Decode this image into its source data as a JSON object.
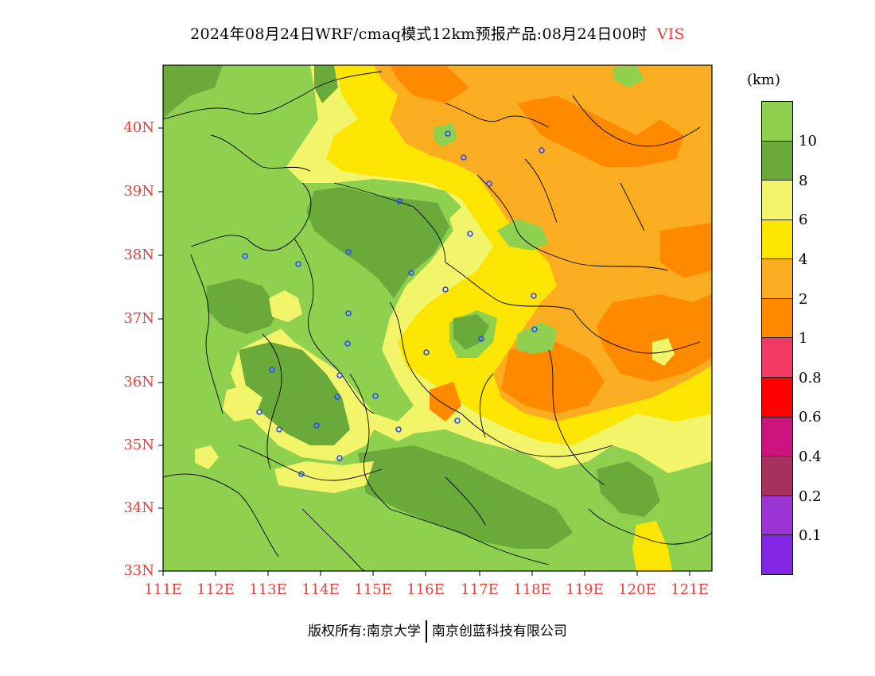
{
  "title": {
    "text": "2024年08月24日WRF/cmaq模式12km预报产品:08月24日00时",
    "variable": "VIS"
  },
  "map": {
    "lat_labels": [
      "40N",
      "39N",
      "38N",
      "37N",
      "36N",
      "35N",
      "34N",
      "33N"
    ],
    "lon_labels": [
      "111E",
      "112E",
      "113E",
      "114E",
      "115E",
      "116E",
      "117E",
      "118E",
      "119E",
      "120E",
      "121E"
    ]
  },
  "colorbar": {
    "unit": "(km)",
    "levels": [
      {
        "label": "",
        "color": "#8fd14f"
      },
      {
        "label": "10",
        "color": "#6aaa3a"
      },
      {
        "label": "8",
        "color": "#f2f56a"
      },
      {
        "label": "6",
        "color": "#fce500"
      },
      {
        "label": "4",
        "color": "#fbad21"
      },
      {
        "label": "2",
        "color": "#ff8a00"
      },
      {
        "label": "1",
        "color": "#f33a64"
      },
      {
        "label": "0.8",
        "color": "#ff0000"
      },
      {
        "label": "0.6",
        "color": "#cc147f"
      },
      {
        "label": "0.4",
        "color": "#a8305f"
      },
      {
        "label": "0.2",
        "color": "#9a35d3"
      },
      {
        "label": "0.1",
        "color": "#8426e6"
      }
    ]
  },
  "footer": {
    "left": "版权所有:南京大学",
    "right": "南京创蓝科技有限公司"
  }
}
